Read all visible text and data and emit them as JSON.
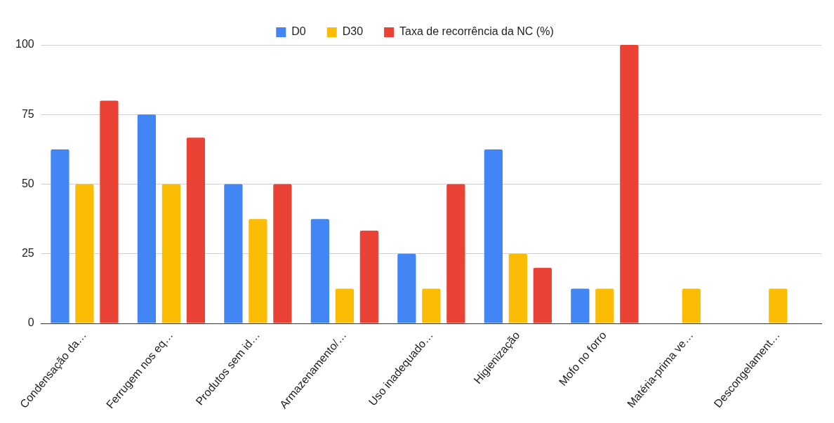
{
  "chart_data": {
    "type": "bar",
    "categories": [
      "Condensação da…",
      "Ferrugem nos eq…",
      "Produtos sem id…",
      "Armazenamento/…",
      "Uso inadequado…",
      "Higienização",
      "Mofo no forro",
      "Matéria-prima ve…",
      "Descongelament…"
    ],
    "series": [
      {
        "name": "D0",
        "color": "#4285f4",
        "values": [
          62.5,
          75,
          50,
          37.5,
          25,
          62.5,
          12.5,
          null,
          null
        ]
      },
      {
        "name": "D30",
        "color": "#fbbc04",
        "values": [
          50,
          50,
          37.5,
          12.5,
          12.5,
          25,
          12.5,
          12.5,
          12.5
        ]
      },
      {
        "name": "Taxa de recorrência da NC (%)",
        "color": "#ea4335",
        "values": [
          80,
          66.7,
          50,
          33.3,
          50,
          20,
          100,
          null,
          null
        ]
      }
    ],
    "ylim": [
      0,
      100
    ],
    "yticks": [
      0,
      25,
      50,
      75,
      100
    ],
    "grid": "y",
    "legend": "top"
  }
}
